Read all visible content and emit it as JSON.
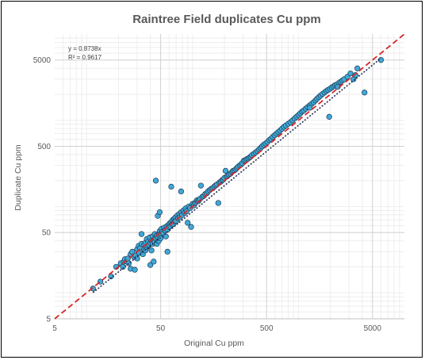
{
  "chart_data": {
    "type": "scatter",
    "title": "Raintree Field duplicates Cu ppm",
    "xlabel": "Original Cu ppm",
    "ylabel": "Duplicate Cu ppm",
    "scale": "log",
    "xlim": [
      5,
      10000
    ],
    "ylim": [
      5,
      10000
    ],
    "xticks": [
      "5",
      "50",
      "500",
      "5000"
    ],
    "yticks": [
      "5",
      "50",
      "500",
      "5000"
    ],
    "grid": true,
    "annotation": {
      "equation": "y = 0.8738x",
      "r2": "R² = 0.9617"
    },
    "trendline": {
      "slope": 0.8738,
      "style": "dotted",
      "color": "#1f2a52"
    },
    "identity_line": {
      "style": "dashed",
      "color": "#d62728"
    },
    "marker_color": "#3fa9d6",
    "marker_edge": "#1f3b57",
    "points": [
      [
        11.5,
        11.2
      ],
      [
        13.5,
        13.5
      ],
      [
        17,
        15.5
      ],
      [
        19,
        20
      ],
      [
        21,
        22
      ],
      [
        22,
        20
      ],
      [
        22.5,
        23
      ],
      [
        23,
        24.5
      ],
      [
        24,
        23
      ],
      [
        24.5,
        25
      ],
      [
        25,
        22
      ],
      [
        26,
        28
      ],
      [
        26,
        19
      ],
      [
        27,
        30
      ],
      [
        28,
        26
      ],
      [
        28.5,
        18.5
      ],
      [
        29,
        27
      ],
      [
        30,
        25
      ],
      [
        30,
        32
      ],
      [
        31,
        35
      ],
      [
        31.5,
        29
      ],
      [
        32,
        33
      ],
      [
        33,
        37
      ],
      [
        33,
        48
      ],
      [
        34,
        28
      ],
      [
        35,
        32
      ],
      [
        35,
        36
      ],
      [
        36,
        38
      ],
      [
        36,
        31
      ],
      [
        37,
        34
      ],
      [
        37,
        42
      ],
      [
        38,
        39
      ],
      [
        38,
        35
      ],
      [
        39,
        36
      ],
      [
        39.5,
        44
      ],
      [
        40,
        38
      ],
      [
        40,
        21
      ],
      [
        41,
        31
      ],
      [
        41,
        40
      ],
      [
        42,
        37
      ],
      [
        42,
        45
      ],
      [
        43,
        41
      ],
      [
        43,
        23
      ],
      [
        44,
        39
      ],
      [
        44,
        48
      ],
      [
        45,
        43
      ],
      [
        45,
        200
      ],
      [
        46,
        46
      ],
      [
        46,
        37
      ],
      [
        47,
        44
      ],
      [
        47,
        78
      ],
      [
        48,
        47
      ],
      [
        48,
        40
      ],
      [
        49,
        52
      ],
      [
        49,
        86
      ],
      [
        50,
        48
      ],
      [
        50,
        43
      ],
      [
        51,
        55
      ],
      [
        52,
        51
      ],
      [
        53,
        49
      ],
      [
        54,
        57
      ],
      [
        55,
        53
      ],
      [
        56,
        45
      ],
      [
        57,
        59
      ],
      [
        58,
        54
      ],
      [
        58,
        30
      ],
      [
        59,
        61
      ],
      [
        60,
        58
      ],
      [
        61,
        64
      ],
      [
        62,
        59
      ],
      [
        63,
        66
      ],
      [
        63,
        170
      ],
      [
        64,
        62
      ],
      [
        65,
        70
      ],
      [
        66,
        63
      ],
      [
        67,
        72
      ],
      [
        68,
        67
      ],
      [
        69,
        75
      ],
      [
        70,
        68
      ],
      [
        72,
        79
      ],
      [
        73,
        73
      ],
      [
        75,
        82
      ],
      [
        76,
        75
      ],
      [
        78,
        86
      ],
      [
        78,
        150
      ],
      [
        80,
        80
      ],
      [
        82,
        90
      ],
      [
        84,
        84
      ],
      [
        86,
        95
      ],
      [
        88,
        88
      ],
      [
        90,
        65
      ],
      [
        92,
        100
      ],
      [
        95,
        96
      ],
      [
        97,
        58
      ],
      [
        100,
        107
      ],
      [
        103,
        103
      ],
      [
        105,
        110
      ],
      [
        108,
        112
      ],
      [
        110,
        118
      ],
      [
        113,
        115
      ],
      [
        115,
        120
      ],
      [
        118,
        123
      ],
      [
        120,
        175
      ],
      [
        124,
        130
      ],
      [
        128,
        133
      ],
      [
        132,
        140
      ],
      [
        136,
        142
      ],
      [
        140,
        150
      ],
      [
        145,
        155
      ],
      [
        150,
        160
      ],
      [
        155,
        163
      ],
      [
        160,
        170
      ],
      [
        165,
        176
      ],
      [
        170,
        180
      ],
      [
        175,
        110
      ],
      [
        180,
        190
      ],
      [
        185,
        195
      ],
      [
        190,
        202
      ],
      [
        195,
        205
      ],
      [
        200,
        215
      ],
      [
        205,
        260
      ],
      [
        210,
        222
      ],
      [
        215,
        228
      ],
      [
        220,
        235
      ],
      [
        228,
        240
      ],
      [
        235,
        250
      ],
      [
        240,
        258
      ],
      [
        248,
        262
      ],
      [
        255,
        270
      ],
      [
        262,
        280
      ],
      [
        270,
        290
      ],
      [
        280,
        300
      ],
      [
        288,
        308
      ],
      [
        295,
        320
      ],
      [
        305,
        340
      ],
      [
        315,
        345
      ],
      [
        325,
        355
      ],
      [
        335,
        360
      ],
      [
        345,
        370
      ],
      [
        355,
        380
      ],
      [
        365,
        395
      ],
      [
        380,
        410
      ],
      [
        395,
        425
      ],
      [
        410,
        440
      ],
      [
        425,
        460
      ],
      [
        440,
        480
      ],
      [
        455,
        500
      ],
      [
        470,
        520
      ],
      [
        490,
        540
      ],
      [
        510,
        560
      ],
      [
        530,
        590
      ],
      [
        550,
        610
      ],
      [
        570,
        640
      ],
      [
        595,
        670
      ],
      [
        620,
        700
      ],
      [
        645,
        730
      ],
      [
        670,
        760
      ],
      [
        700,
        800
      ],
      [
        730,
        840
      ],
      [
        760,
        870
      ],
      [
        800,
        910
      ],
      [
        840,
        950
      ],
      [
        880,
        1000
      ],
      [
        920,
        1050
      ],
      [
        960,
        1100
      ],
      [
        1000,
        1150
      ],
      [
        1040,
        1200
      ],
      [
        1080,
        1260
      ],
      [
        1120,
        1300
      ],
      [
        1170,
        1360
      ],
      [
        1220,
        1420
      ],
      [
        1270,
        1480
      ],
      [
        1330,
        1550
      ],
      [
        1390,
        1620
      ],
      [
        1450,
        1700
      ],
      [
        1500,
        1780
      ],
      [
        1560,
        1860
      ],
      [
        1620,
        1940
      ],
      [
        1690,
        2020
      ],
      [
        1760,
        2100
      ],
      [
        1830,
        2180
      ],
      [
        1900,
        2250
      ],
      [
        1980,
        2320
      ],
      [
        2060,
        2400
      ],
      [
        2140,
        2480
      ],
      [
        2220,
        2550
      ],
      [
        2300,
        2600
      ],
      [
        2400,
        2700
      ],
      [
        2500,
        2800
      ],
      [
        2600,
        2900
      ],
      [
        2700,
        3000
      ],
      [
        1950,
        1100
      ],
      [
        2900,
        3200
      ],
      [
        3100,
        3500
      ],
      [
        3300,
        3000
      ],
      [
        3600,
        4000
      ],
      [
        4200,
        2100
      ],
      [
        6000,
        5000
      ],
      [
        3450,
        3350
      ],
      [
        2350,
        2450
      ],
      [
        1280,
        1400
      ]
    ]
  }
}
